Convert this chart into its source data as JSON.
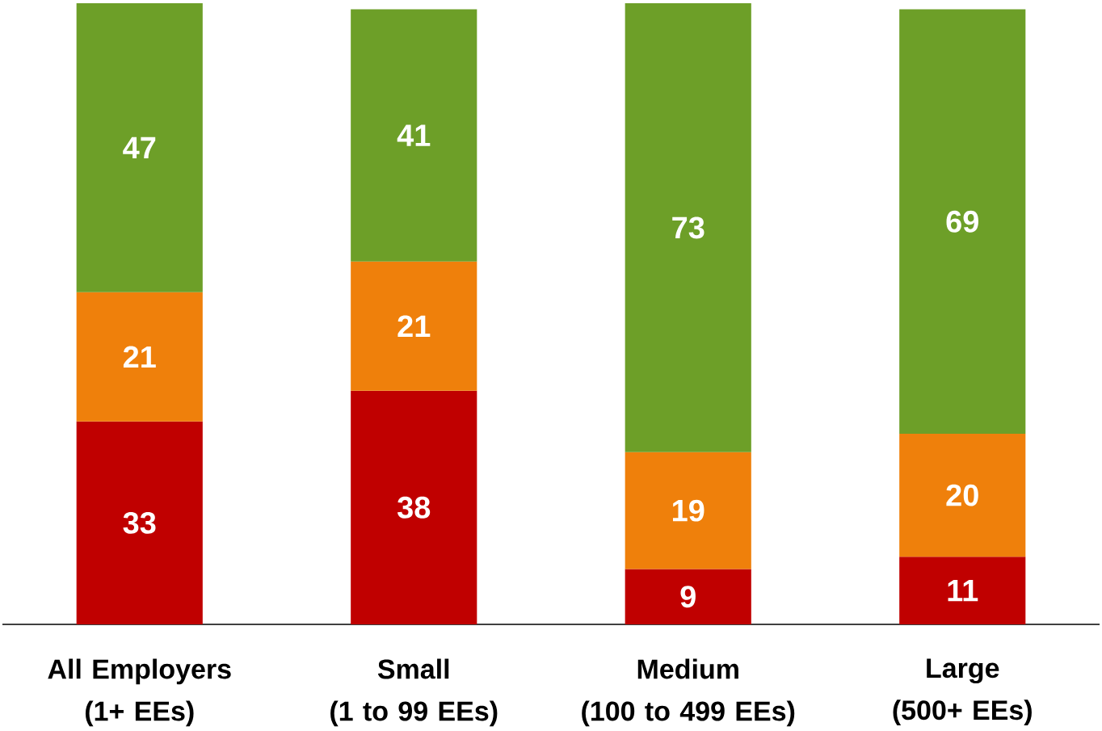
{
  "chart_data": {
    "type": "bar",
    "stacked": true,
    "data_labels": true,
    "categories": [
      "All Employers\n(1+ EEs)",
      "Small\n(1 to 99 EEs)",
      "Medium\n(100 to 499 EEs)",
      "Large\n(500+ EEs)"
    ],
    "series": [
      {
        "color": "#c00000",
        "values": [
          33,
          38,
          9,
          11
        ]
      },
      {
        "color": "#ef800b",
        "values": [
          21,
          21,
          19,
          20
        ]
      },
      {
        "color": "#6d9f28",
        "values": [
          47,
          41,
          73,
          69
        ]
      }
    ]
  }
}
